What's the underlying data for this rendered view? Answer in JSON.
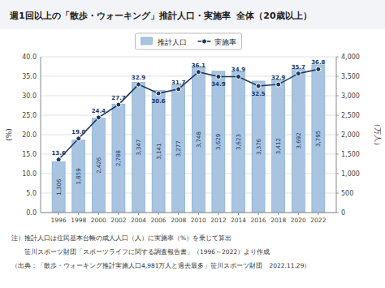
{
  "chart_data": {
    "type": "bar",
    "title": "週1回以上の「散歩・ウォーキング」推計人口・実施率  全体（20歳以上）",
    "x": [
      1996,
      1998,
      2000,
      2002,
      2004,
      2006,
      2008,
      2010,
      2012,
      2014,
      2016,
      2018,
      2020,
      2022
    ],
    "xlim": [
      1994.2,
      2023.8
    ],
    "xticks": [
      1996,
      1998,
      2000,
      2002,
      2004,
      2006,
      2008,
      2010,
      2012,
      2014,
      2016,
      2018,
      2020,
      2022
    ],
    "series": [
      {
        "name": "推計人口",
        "type": "bar",
        "axis": "y2",
        "color": "#a8c4e0",
        "values": [
          1306,
          1859,
          2426,
          2788,
          3347,
          3141,
          3277,
          3748,
          3629,
          3623,
          3376,
          3412,
          3692,
          3795
        ],
        "value_labels": [
          "1,306",
          "1,859",
          "2,426",
          "2,788",
          "3,347",
          "3,141",
          "3,277",
          "3,748",
          "3,629",
          "3,623",
          "3,376",
          "3,412",
          "3,692",
          "3,795"
        ]
      },
      {
        "name": "実施率",
        "type": "line",
        "color": "#1f3864",
        "marker": "circle",
        "values": [
          13.6,
          19.0,
          24.4,
          27.7,
          32.9,
          30.6,
          31.7,
          36.1,
          34.9,
          34.9,
          32.5,
          32.9,
          35.7,
          36.8
        ],
        "value_labels": [
          "13.6",
          "19.0",
          "24.4",
          "27.7",
          "32.9",
          "30.6",
          "31.7",
          "36.1",
          "34.9",
          "34.9",
          "32.5",
          "32.9",
          "35.7",
          "36.8"
        ]
      }
    ],
    "ylabel": "(%)",
    "y2label": "（万人）",
    "ylim": [
      0,
      40
    ],
    "yticks": [
      {
        "value": 0,
        "label": "0.0"
      },
      {
        "value": 5,
        "label": "5.0"
      },
      {
        "value": 10,
        "label": "10.0"
      },
      {
        "value": 15,
        "label": "15.0"
      },
      {
        "value": 20,
        "label": "20.0"
      },
      {
        "value": 25,
        "label": "25.0"
      },
      {
        "value": 30,
        "label": "30.0"
      },
      {
        "value": 35,
        "label": "35.0"
      },
      {
        "value": 40,
        "label": "40.0"
      }
    ],
    "y2lim": [
      0,
      4000
    ],
    "y2ticks": [
      0,
      500,
      {
        "value": 1000,
        "label": "1,000"
      },
      {
        "value": 1500,
        "label": "1,500"
      },
      {
        "value": 2000,
        "label": "2,000"
      },
      {
        "value": 2500,
        "label": "2,500"
      },
      {
        "value": 3000,
        "label": "3,000"
      },
      {
        "value": 3500,
        "label": "3,500"
      },
      {
        "value": 4000,
        "label": "4,000"
      }
    ],
    "grid": true,
    "legend": "upper center",
    "data_labels": true,
    "annotations": [
      "注）推計人口は住民基本台帳の成人人口（人）に実施率（%）を乗じて算出",
      "　　笹川スポーツ財団「スポーツライフに関する調査報告書」（1996～2022）より作成",
      "（出典：「散歩・ウォーキング推計実施人口4,981万人と過去最多」笹川スポーツ財団　2022.11.29）"
    ]
  }
}
